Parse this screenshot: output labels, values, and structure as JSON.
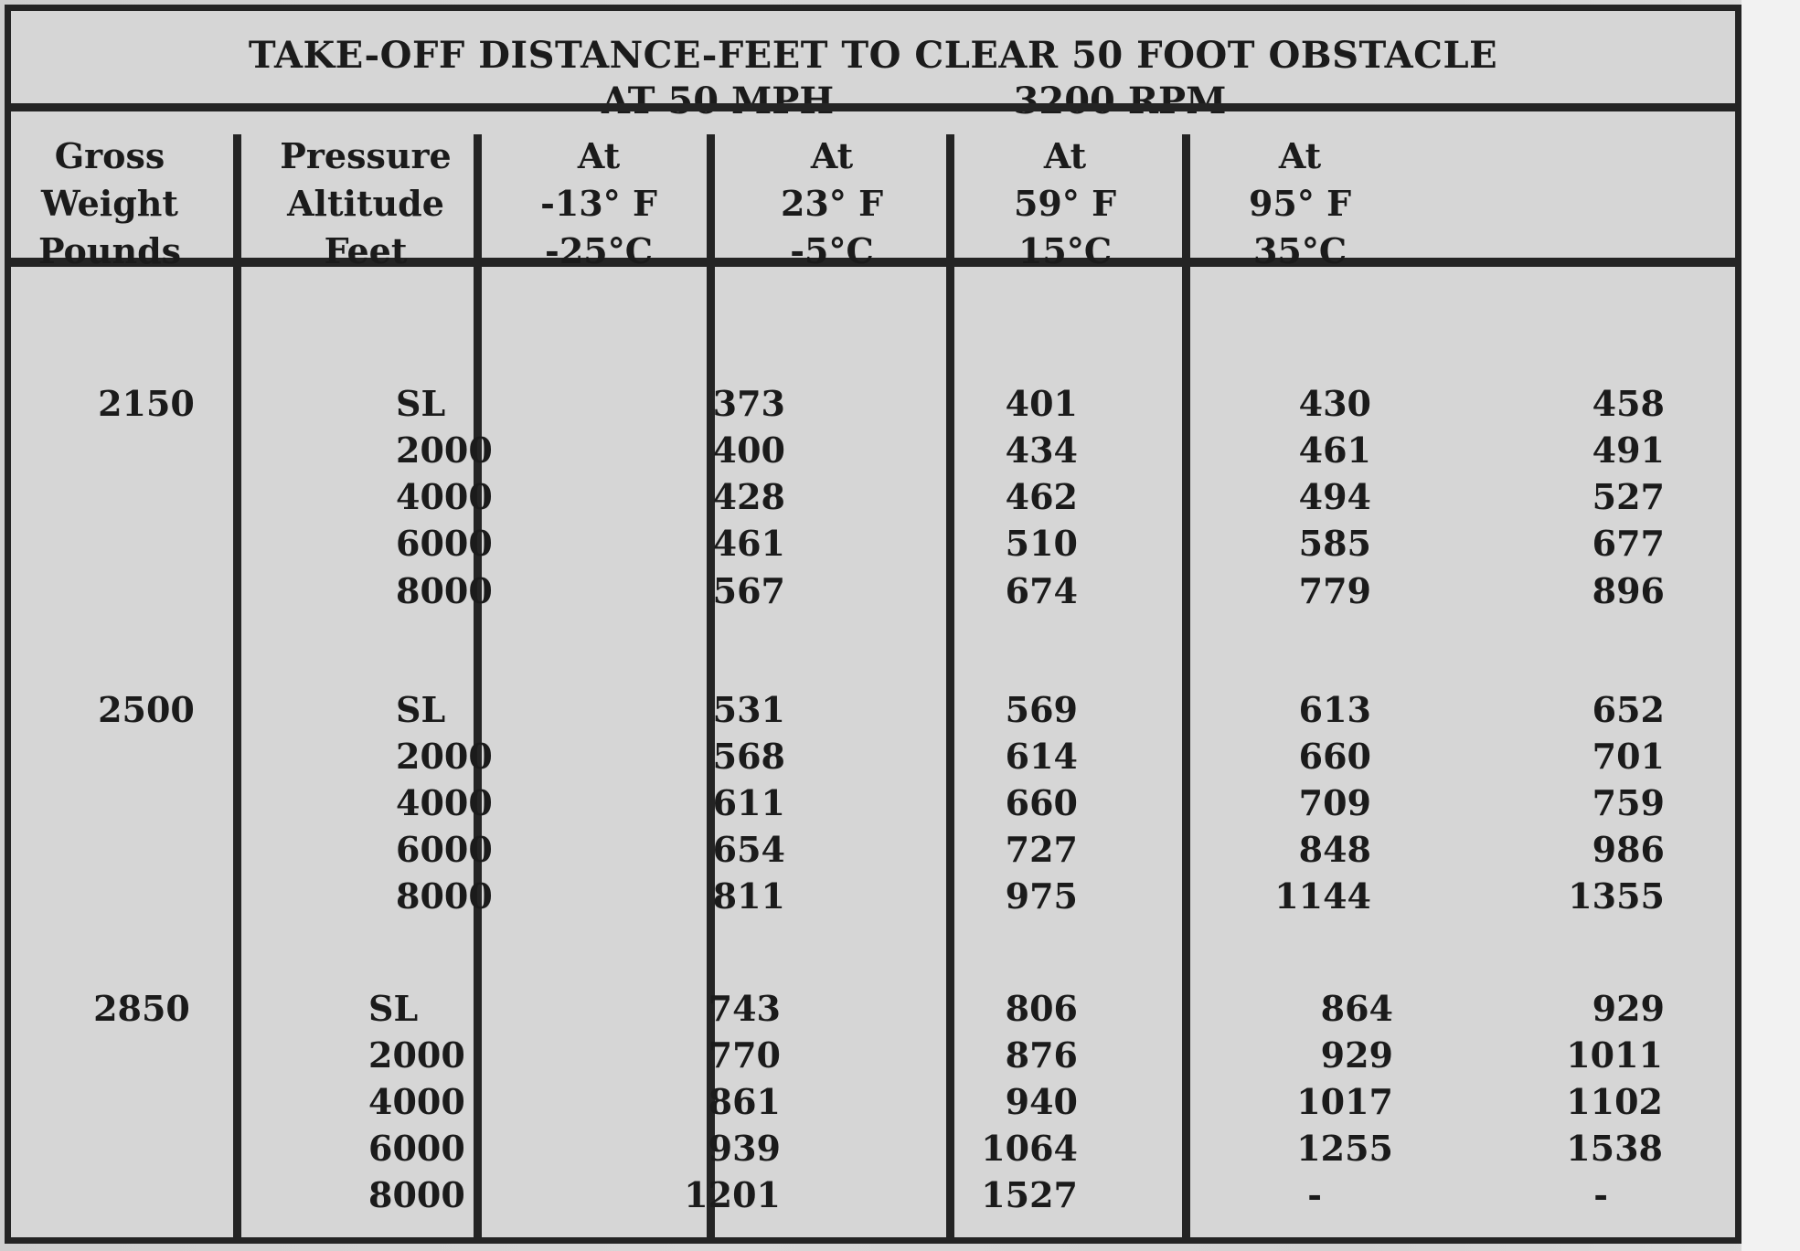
{
  "title": {
    "line1": "TAKE-OFF DISTANCE-FEET TO CLEAR 50 FOOT OBSTACLE",
    "speed": "AT 50 MPH",
    "rpm": "3200 RPM"
  },
  "headers": {
    "gross_weight": [
      "Gross",
      "Weight",
      "Pounds"
    ],
    "pressure_altitude": [
      "Pressure",
      "Altitude",
      "Feet"
    ],
    "temps": [
      [
        "At",
        "-13° F",
        "-25°C"
      ],
      [
        "At",
        "23° F",
        "-5°C"
      ],
      [
        "At",
        "59° F",
        "15°C"
      ],
      [
        "At",
        "95° F",
        "35°C"
      ]
    ]
  },
  "groups": [
    {
      "weight": "2150",
      "rows": [
        {
          "alt": "SL",
          "v": [
            "373",
            "401",
            "430",
            "458"
          ]
        },
        {
          "alt": "2000",
          "v": [
            "400",
            "434",
            "461",
            "491"
          ]
        },
        {
          "alt": "4000",
          "v": [
            "428",
            "462",
            "494",
            "527"
          ]
        },
        {
          "alt": "6000",
          "v": [
            "461",
            "510",
            "585",
            "677"
          ]
        },
        {
          "alt": "8000",
          "v": [
            "567",
            "674",
            "779",
            "896"
          ]
        }
      ]
    },
    {
      "weight": "2500",
      "rows": [
        {
          "alt": "SL",
          "v": [
            "531",
            "569",
            "613",
            "652"
          ]
        },
        {
          "alt": "2000",
          "v": [
            "568",
            "614",
            "660",
            "701"
          ]
        },
        {
          "alt": "4000",
          "v": [
            "611",
            "660",
            "709",
            "759"
          ]
        },
        {
          "alt": "6000",
          "v": [
            "654",
            "727",
            "848",
            "986"
          ]
        },
        {
          "alt": "8000",
          "v": [
            "811",
            "975",
            "1144",
            "1355"
          ]
        }
      ]
    },
    {
      "weight": "2850",
      "rows": [
        {
          "alt": "SL",
          "v": [
            "743",
            "806",
            "864",
            "929"
          ]
        },
        {
          "alt": "2000",
          "v": [
            "770",
            "876",
            "929",
            "1011"
          ]
        },
        {
          "alt": "4000",
          "v": [
            "861",
            "940",
            "1017",
            "1102"
          ]
        },
        {
          "alt": "6000",
          "v": [
            "939",
            "1064",
            "1255",
            "1538"
          ]
        },
        {
          "alt": "8000",
          "v": [
            "1201",
            "1527",
            "-",
            "-"
          ]
        }
      ]
    }
  ]
}
